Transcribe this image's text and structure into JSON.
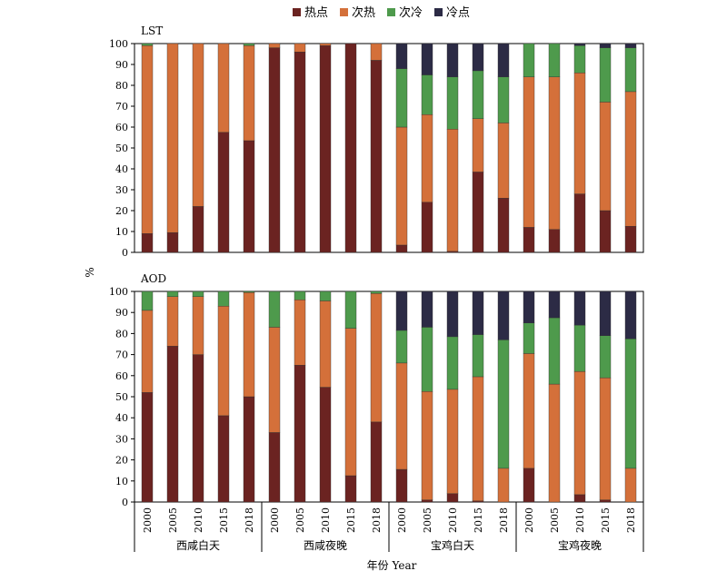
{
  "chart_data": {
    "type": "bar",
    "stacked": true,
    "legend": {
      "placement": "top",
      "entries": [
        {
          "name": "热点",
          "color": "#6b2321"
        },
        {
          "name": "次热",
          "color": "#d4703a"
        },
        {
          "name": "次冷",
          "color": "#4e9a4c"
        },
        {
          "name": "冷点",
          "color": "#2c2b45"
        }
      ]
    },
    "ylabel": "%",
    "xlabel": "年份 Year",
    "ylim": [
      0,
      100
    ],
    "yticks": [
      0,
      10,
      20,
      30,
      40,
      50,
      60,
      70,
      80,
      90,
      100
    ],
    "years": [
      "2000",
      "2005",
      "2010",
      "2015",
      "2018"
    ],
    "groups": [
      "西咸白天",
      "西咸夜晚",
      "宝鸡白天",
      "宝鸡夜晚"
    ],
    "panels": [
      {
        "title": "LST",
        "bars": [
          [
            9,
            90,
            1,
            0
          ],
          [
            9.5,
            90.5,
            0,
            0
          ],
          [
            22,
            78,
            0,
            0
          ],
          [
            57.5,
            42.5,
            0,
            0
          ],
          [
            53.5,
            45.5,
            1,
            0
          ],
          [
            98,
            2,
            0,
            0
          ],
          [
            96,
            4,
            0,
            0
          ],
          [
            99,
            1,
            0,
            0
          ],
          [
            100,
            0,
            0,
            0
          ],
          [
            92,
            8,
            0,
            0
          ],
          [
            3.5,
            56.5,
            28,
            12
          ],
          [
            24,
            42,
            19,
            15
          ],
          [
            0.5,
            58.5,
            25,
            16
          ],
          [
            38.5,
            25.5,
            23,
            13
          ],
          [
            26,
            36,
            22,
            16
          ],
          [
            12,
            72,
            16,
            0
          ],
          [
            11,
            73,
            16,
            0
          ],
          [
            28,
            58,
            13,
            1
          ],
          [
            20,
            52,
            26,
            2
          ],
          [
            12.5,
            64.5,
            21,
            2
          ]
        ]
      },
      {
        "title": "AOD",
        "bars": [
          [
            52,
            39,
            9,
            0
          ],
          [
            74,
            23.5,
            2.5,
            0
          ],
          [
            70,
            27.5,
            2.5,
            0
          ],
          [
            41,
            52,
            7,
            0
          ],
          [
            50,
            49.5,
            0.5,
            0
          ],
          [
            33,
            50,
            17,
            0
          ],
          [
            65,
            31,
            4,
            0
          ],
          [
            54.5,
            41,
            4.5,
            0
          ],
          [
            12.5,
            70,
            17.5,
            0
          ],
          [
            38,
            61,
            1,
            0
          ],
          [
            15.5,
            50.5,
            15.5,
            18.5
          ],
          [
            1,
            51.5,
            30.5,
            17
          ],
          [
            4,
            49.5,
            25,
            21.5
          ],
          [
            0.5,
            59,
            20,
            20.5
          ],
          [
            0,
            16,
            61,
            23
          ],
          [
            16,
            54.5,
            14.5,
            15
          ],
          [
            0,
            56,
            31.5,
            12.5
          ],
          [
            3.5,
            58.5,
            22,
            16
          ],
          [
            1,
            58,
            20,
            21
          ],
          [
            0,
            16,
            61.5,
            22.5
          ]
        ]
      }
    ]
  }
}
